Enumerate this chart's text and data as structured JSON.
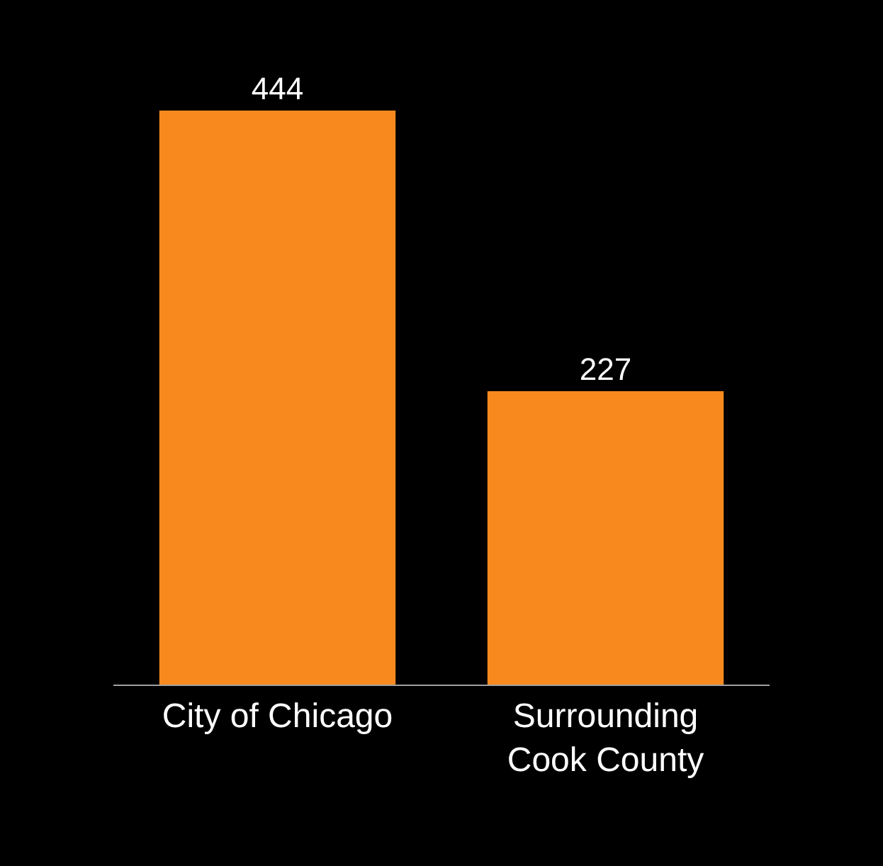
{
  "chart_data": {
    "type": "bar",
    "categories": [
      "City of Chicago",
      "Surrounding\nCook County"
    ],
    "values": [
      444,
      227
    ],
    "color": "#f7891f",
    "data_labels": true,
    "legend": false
  }
}
